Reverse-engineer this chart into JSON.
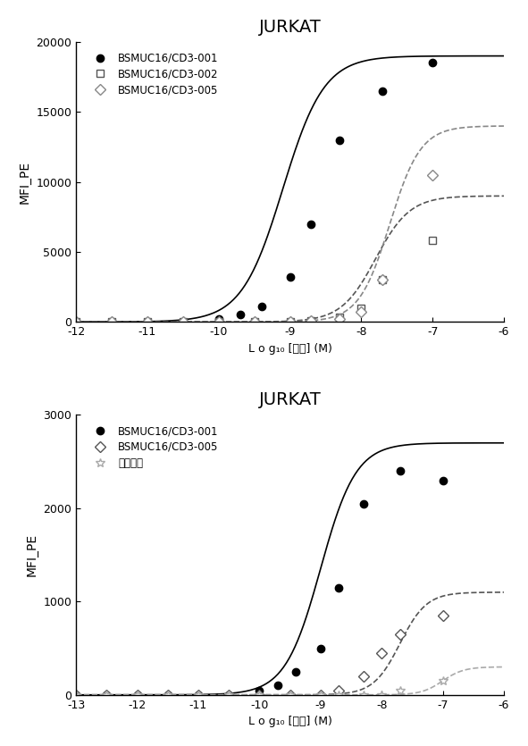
{
  "top": {
    "title": "JURKAT",
    "ylabel": "MFI_PE",
    "xlabel": "L o g₁₀ [抗体] (M)",
    "xlim": [
      -12,
      -6
    ],
    "ylim": [
      0,
      20000
    ],
    "xticks": [
      -12,
      -11,
      -10,
      -9,
      -8,
      -7,
      -6
    ],
    "yticks": [
      0,
      5000,
      10000,
      15000,
      20000
    ],
    "series": [
      {
        "label": "BSMUC16/CD3-001",
        "color": "#000000",
        "linestyle": "-",
        "marker": "o",
        "markerfacecolor": "#000000",
        "markersize": 6,
        "x_data": [
          -12,
          -11.5,
          -11,
          -10.5,
          -10,
          -9.7,
          -9.4,
          -9.0,
          -8.7,
          -8.3,
          -7.7,
          -7.0
        ],
        "y_data": [
          0,
          0,
          0,
          0,
          200,
          500,
          1100,
          3200,
          7000,
          13000,
          16500,
          18500
        ],
        "fit_x": [
          -12,
          -11.5,
          -11,
          -10.5,
          -10,
          -9.7,
          -9.4,
          -9.0,
          -8.7,
          -8.3,
          -7.7,
          -7.0
        ],
        "fit_params": {
          "top": 19000,
          "bottom": 0,
          "ec50_log": -9.1,
          "hillslope": 1.5
        }
      },
      {
        "label": "BSMUC16/CD3-002",
        "color": "#555555",
        "linestyle": "--",
        "marker": "s",
        "markerfacecolor": "white",
        "markersize": 6,
        "x_data": [
          -12,
          -11.5,
          -11,
          -10.5,
          -10,
          -9.5,
          -9.0,
          -8.7,
          -8.3,
          -8.0,
          -7.7,
          -7.0
        ],
        "y_data": [
          0,
          0,
          0,
          0,
          0,
          0,
          0,
          100,
          350,
          1000,
          3000,
          5800
        ],
        "fit_params": {
          "top": 9000,
          "bottom": 0,
          "ec50_log": -7.8,
          "hillslope": 1.8
        }
      },
      {
        "label": "BSMUC16/CD3-005",
        "color": "#888888",
        "linestyle": "--",
        "marker": "D",
        "markerfacecolor": "white",
        "markersize": 6,
        "x_data": [
          -12,
          -11.5,
          -11,
          -10.5,
          -10,
          -9.5,
          -9.0,
          -8.7,
          -8.3,
          -8.0,
          -7.7,
          -7.0
        ],
        "y_data": [
          0,
          0,
          0,
          0,
          0,
          0,
          0,
          50,
          200,
          700,
          3000,
          10500
        ],
        "fit_params": {
          "top": 14000,
          "bottom": 0,
          "ec50_log": -7.6,
          "hillslope": 2.0
        }
      }
    ]
  },
  "bottom": {
    "title": "JURKAT",
    "ylabel": "MFI_PE",
    "xlabel": "L o g₁₀ [抗体] (M)",
    "xlim": [
      -13,
      -6
    ],
    "ylim": [
      0,
      3000
    ],
    "xticks": [
      -13,
      -12,
      -11,
      -10,
      -9,
      -8,
      -7,
      -6
    ],
    "yticks": [
      0,
      1000,
      2000,
      3000
    ],
    "series": [
      {
        "label": "BSMUC16/CD3-001",
        "color": "#000000",
        "linestyle": "-",
        "marker": "o",
        "markerfacecolor": "#000000",
        "markersize": 6,
        "x_data": [
          -13,
          -12.5,
          -12,
          -11.5,
          -11,
          -10.5,
          -10,
          -9.7,
          -9.4,
          -9.0,
          -8.7,
          -8.3,
          -7.7,
          -7.0
        ],
        "y_data": [
          0,
          0,
          0,
          0,
          0,
          0,
          50,
          100,
          250,
          500,
          1150,
          2050,
          2400,
          2300
        ],
        "fit_params": {
          "top": 2700,
          "bottom": 0,
          "ec50_log": -9.0,
          "hillslope": 1.5
        }
      },
      {
        "label": "BSMUC16/CD3-005",
        "color": "#555555",
        "linestyle": "--",
        "marker": "D",
        "markerfacecolor": "white",
        "markersize": 6,
        "x_data": [
          -13,
          -12.5,
          -12,
          -11.5,
          -11,
          -10.5,
          -10,
          -9.5,
          -9.0,
          -8.7,
          -8.3,
          -8.0,
          -7.7,
          -7.0
        ],
        "y_data": [
          0,
          0,
          0,
          0,
          0,
          0,
          0,
          0,
          0,
          50,
          200,
          450,
          650,
          850
        ],
        "fit_params": {
          "top": 1100,
          "bottom": 0,
          "ec50_log": -7.7,
          "hillslope": 2.0
        }
      },
      {
        "label": "対照Ａｂ",
        "color": "#aaaaaa",
        "linestyle": "--",
        "marker": "*",
        "markerfacecolor": "white",
        "markersize": 7,
        "x_data": [
          -13,
          -12.5,
          -12,
          -11.5,
          -11,
          -10.5,
          -10,
          -9.5,
          -9.0,
          -8.7,
          -8.3,
          -8.0,
          -7.7,
          -7.0
        ],
        "y_data": [
          0,
          0,
          0,
          0,
          0,
          0,
          0,
          0,
          0,
          0,
          0,
          0,
          50,
          150
        ],
        "fit_params": {
          "top": 300,
          "bottom": 0,
          "ec50_log": -7.0,
          "hillslope": 2.5
        }
      }
    ]
  }
}
